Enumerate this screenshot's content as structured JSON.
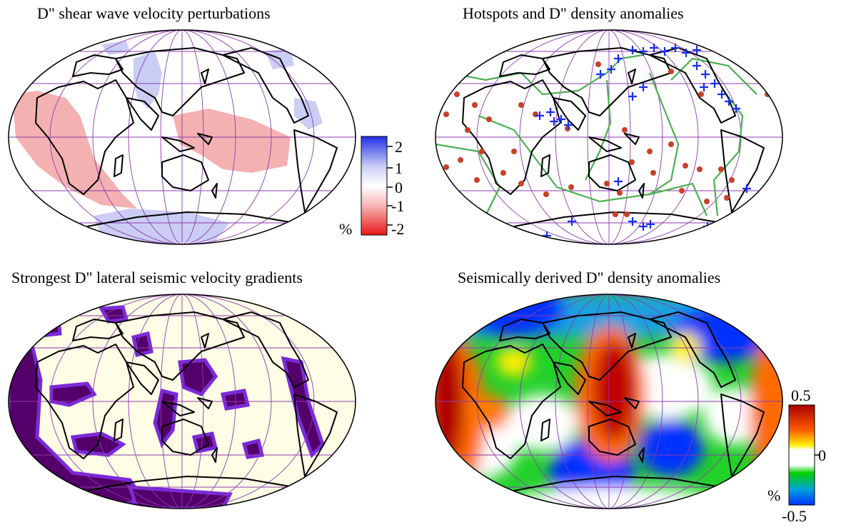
{
  "panels": [
    {
      "id": "shear",
      "title": "D\" shear wave velocity perturbations"
    },
    {
      "id": "hotspots",
      "title": "Hotspots and D\" density anomalies"
    },
    {
      "id": "gradients",
      "title": "Strongest D\" lateral seismic velocity gradients"
    },
    {
      "id": "density",
      "title": "Seismically derived D\" density anomalies"
    }
  ],
  "colorbars": {
    "shear": {
      "unit": "%",
      "ticks": [
        "2",
        "1",
        "0",
        "-1",
        "-2"
      ],
      "colors": [
        "#1f2fe6",
        "#c9cdf5",
        "#ffffff",
        "#f7b7b7",
        "#e81818"
      ]
    },
    "density": {
      "unit": "%",
      "ticks": [
        "0.5",
        "0",
        "-0.5"
      ],
      "colors": [
        "#a80000",
        "#ff6a00",
        "#ffffff",
        "#00d000",
        "#0030ff"
      ]
    }
  },
  "legend_symbols": {
    "hotspot": "circle",
    "density": "plus",
    "plate-boundary": "line"
  },
  "colors": {
    "coastline": "#000000",
    "graticule": "#8c3ab0",
    "plate-boundary": "#4caf50",
    "hotspot": "#c8402a",
    "plus-marker": "#1a2ee8"
  }
}
